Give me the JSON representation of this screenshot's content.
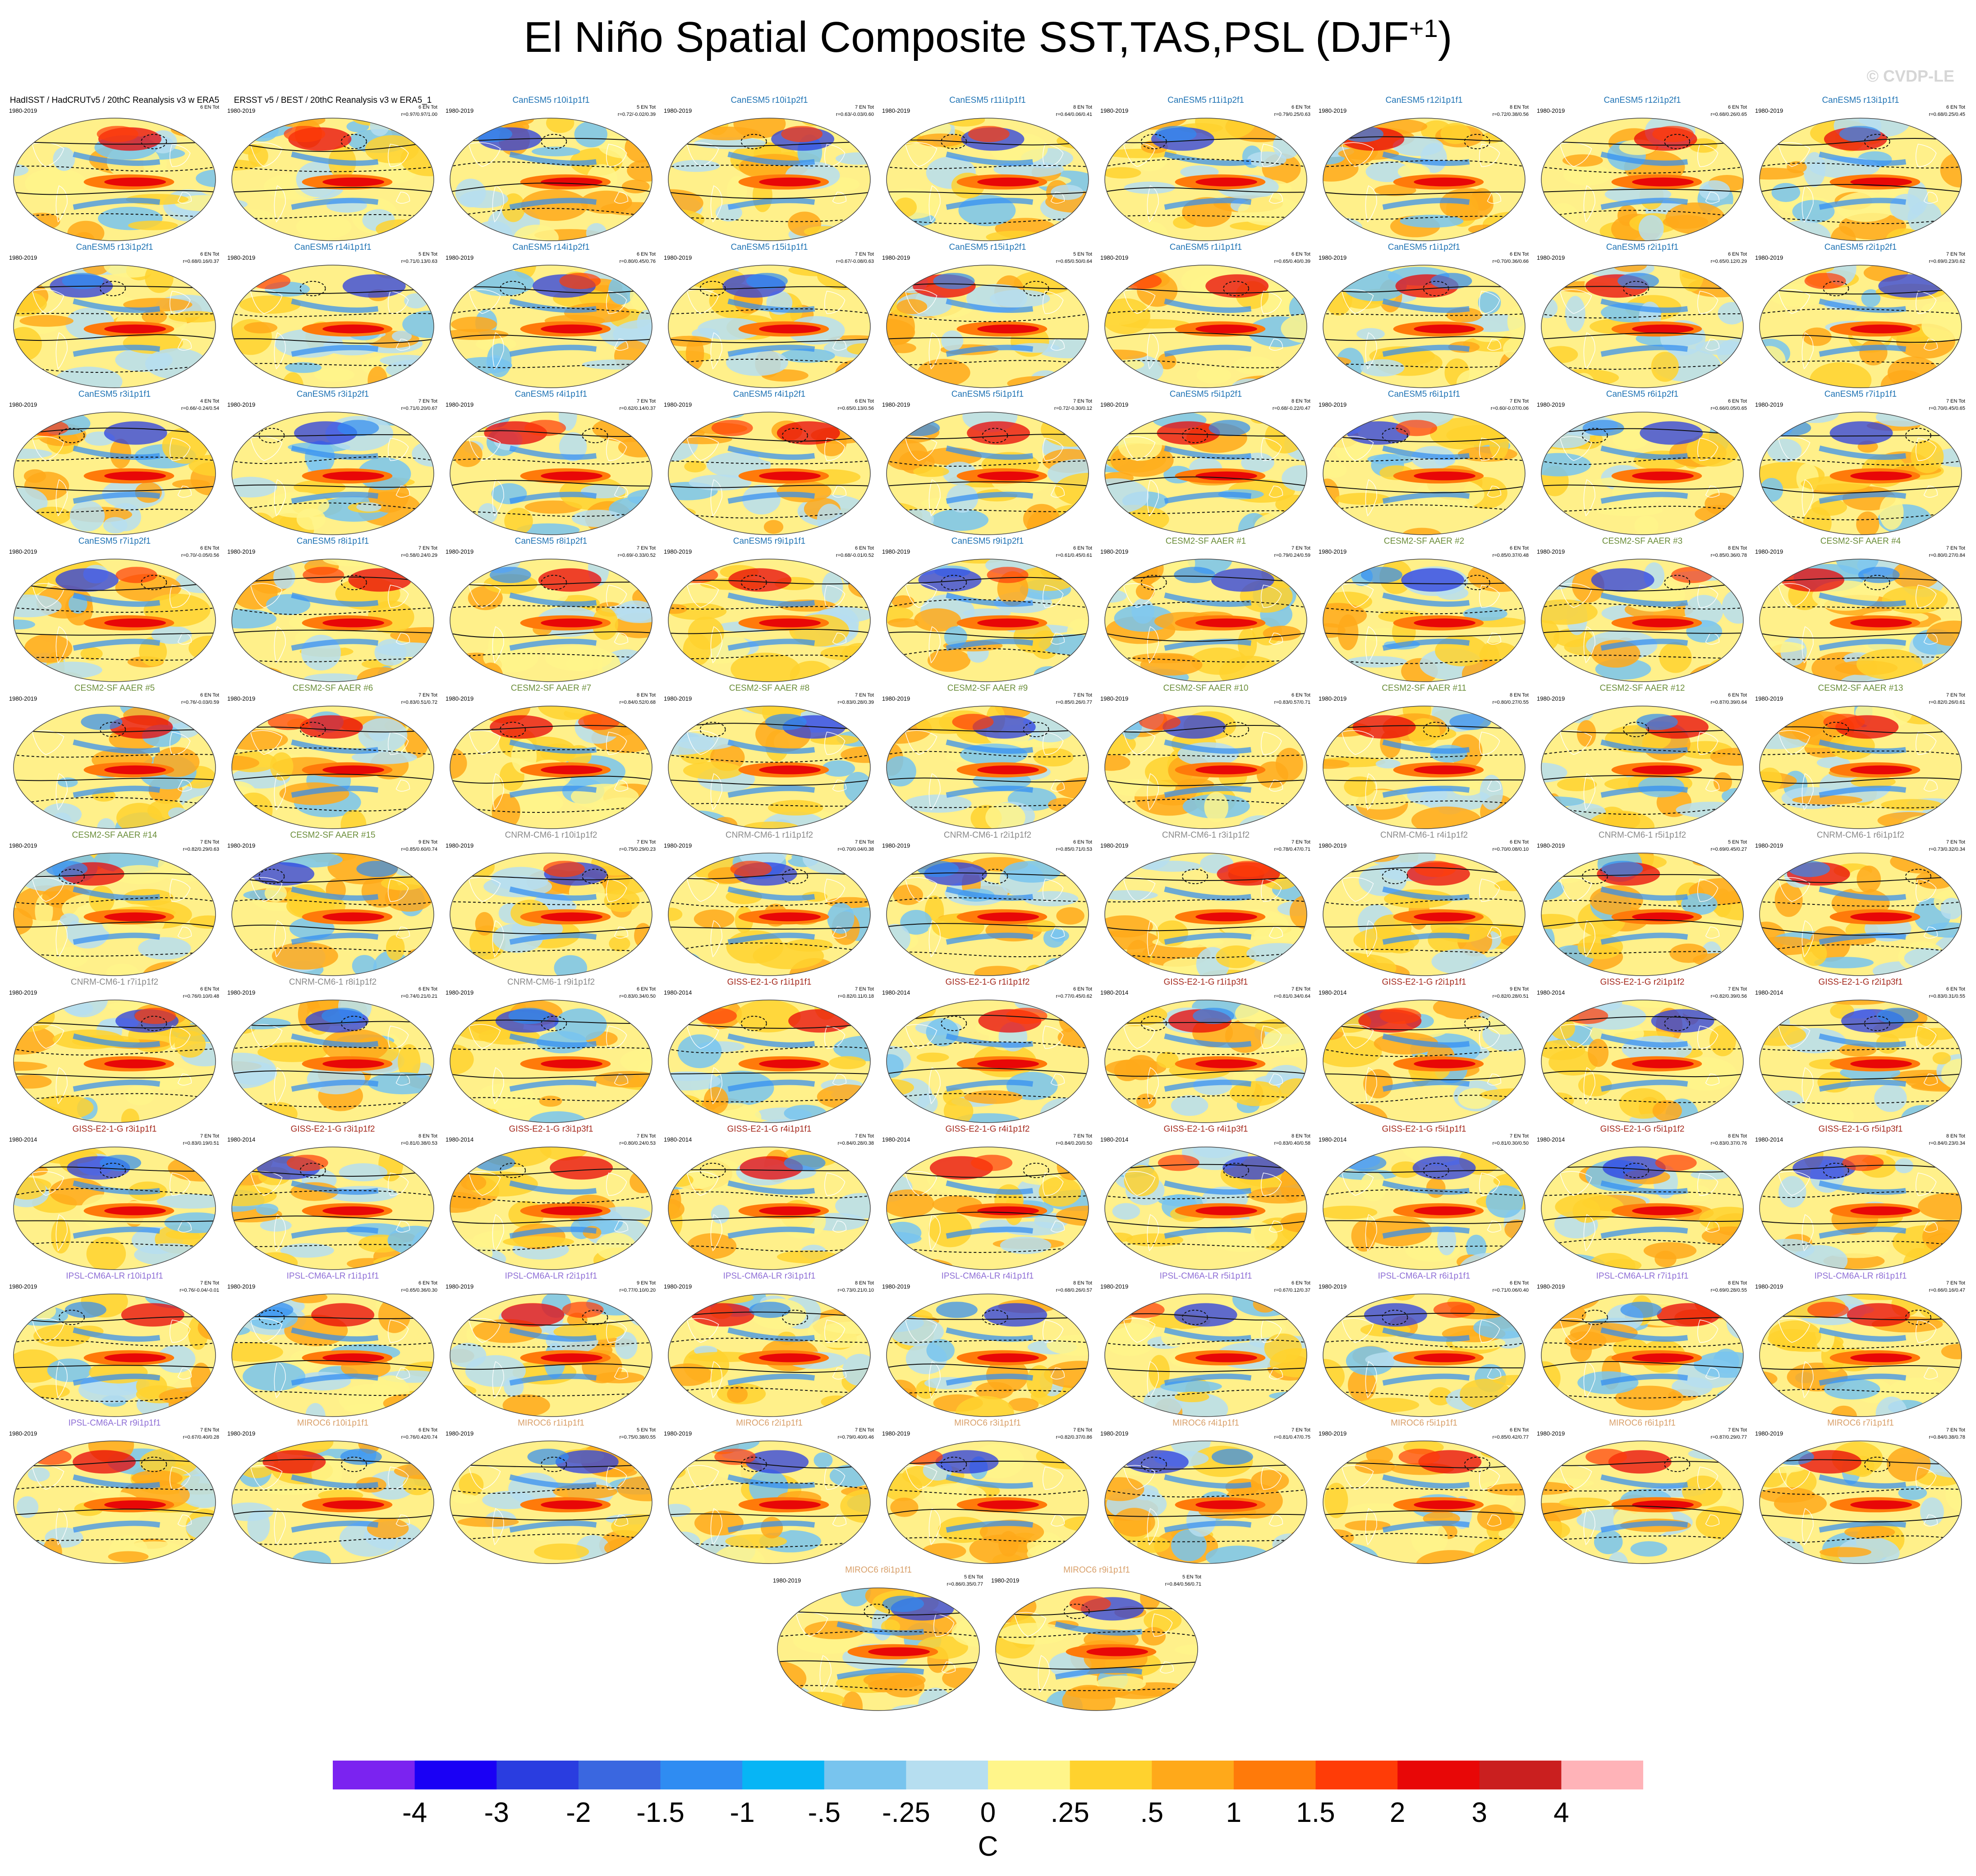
{
  "title_main": "El Niño Spatial Composite SST,TAS,PSL (DJF",
  "title_sup": "+1",
  "title_end": ")",
  "watermark": "© CVDP-LE",
  "chart_data": {
    "type": "heatmap",
    "map_projection": "Robinson (global)",
    "panel_grid": {
      "columns": 9,
      "rows_full": 10,
      "last_row_panels": 2
    },
    "colorbar": {
      "units": "C",
      "labels": [
        "-4",
        "-3",
        "-2",
        "-1.5",
        "-1",
        "-.5",
        "-.25",
        "0",
        ".25",
        ".5",
        "1",
        "1.5",
        "2",
        "3",
        "4"
      ],
      "colors": [
        "#7b23f0",
        "#1a00f5",
        "#2a3de0",
        "#3a67e0",
        "#2f8cf2",
        "#07b5f5",
        "#78c4ee",
        "#b6def0",
        "#fff58a",
        "#ffd22e",
        "#ffa91a",
        "#ff7a0a",
        "#ff3c07",
        "#e80707",
        "#ca1f1f",
        "#ffb3b8"
      ]
    },
    "panels": [
      {
        "title": "HadISST / HadCRUTv5 / 20thC Reanalysis v3 w ERA5",
        "color": "#000000",
        "years": "1980-2019",
        "en": "6 EN Tot",
        "stats": ""
      },
      {
        "title": "ERSST v5 / BEST / 20thC Reanalysis v3 w ERA5_1",
        "color": "#000000",
        "years": "1980-2019",
        "en": "6 EN Tot",
        "stats": "r=0.97/0.97/1.00"
      },
      {
        "title": "CanESM5 r10i1p1f1",
        "color": "#1f73b4",
        "years": "1980-2019",
        "en": "5 EN Tot",
        "stats": "r=0.72/-0.02/0.39"
      },
      {
        "title": "CanESM5 r10i1p2f1",
        "color": "#1f73b4",
        "years": "1980-2019",
        "en": "7 EN Tot",
        "stats": "r=0.63/-0.03/0.60"
      },
      {
        "title": "CanESM5 r11i1p1f1",
        "color": "#1f73b4",
        "years": "1980-2019",
        "en": "8 EN Tot",
        "stats": "r=0.64/0.06/0.41"
      },
      {
        "title": "CanESM5 r11i1p2f1",
        "color": "#1f73b4",
        "years": "1980-2019",
        "en": "6 EN Tot",
        "stats": "r=0.79/0.25/0.63"
      },
      {
        "title": "CanESM5 r12i1p1f1",
        "color": "#1f73b4",
        "years": "1980-2019",
        "en": "8 EN Tot",
        "stats": "r=0.72/0.38/0.56"
      },
      {
        "title": "CanESM5 r12i1p2f1",
        "color": "#1f73b4",
        "years": "1980-2019",
        "en": "6 EN Tot",
        "stats": "r=0.68/0.26/0.65"
      },
      {
        "title": "CanESM5 r13i1p1f1",
        "color": "#1f73b4",
        "years": "1980-2019",
        "en": "6 EN Tot",
        "stats": "r=0.68/0.25/0.45"
      },
      {
        "title": "CanESM5 r13i1p2f1",
        "color": "#1f73b4",
        "years": "1980-2019",
        "en": "6 EN Tot",
        "stats": "r=0.68/0.16/0.37"
      },
      {
        "title": "CanESM5 r14i1p1f1",
        "color": "#1f73b4",
        "years": "1980-2019",
        "en": "5 EN Tot",
        "stats": "r=0.71/0.13/0.63"
      },
      {
        "title": "CanESM5 r14i1p2f1",
        "color": "#1f73b4",
        "years": "1980-2019",
        "en": "6 EN Tot",
        "stats": "r=0.80/0.45/0.76"
      },
      {
        "title": "CanESM5 r15i1p1f1",
        "color": "#1f73b4",
        "years": "1980-2019",
        "en": "7 EN Tot",
        "stats": "r=0.67/-0.08/0.63"
      },
      {
        "title": "CanESM5 r15i1p2f1",
        "color": "#1f73b4",
        "years": "1980-2019",
        "en": "5 EN Tot",
        "stats": "r=0.65/0.50/0.64"
      },
      {
        "title": "CanESM5 r1i1p1f1",
        "color": "#1f73b4",
        "years": "1980-2019",
        "en": "6 EN Tot",
        "stats": "r=0.65/0.40/0.39"
      },
      {
        "title": "CanESM5 r1i1p2f1",
        "color": "#1f73b4",
        "years": "1980-2019",
        "en": "6 EN Tot",
        "stats": "r=0.70/0.36/0.66"
      },
      {
        "title": "CanESM5 r2i1p1f1",
        "color": "#1f73b4",
        "years": "1980-2019",
        "en": "6 EN Tot",
        "stats": "r=0.65/0.12/0.29"
      },
      {
        "title": "CanESM5 r2i1p2f1",
        "color": "#1f73b4",
        "years": "1980-2019",
        "en": "7 EN Tot",
        "stats": "r=0.69/0.23/0.62"
      },
      {
        "title": "CanESM5 r3i1p1f1",
        "color": "#1f73b4",
        "years": "1980-2019",
        "en": "4 EN Tot",
        "stats": "r=0.66/-0.24/0.54"
      },
      {
        "title": "CanESM5 r3i1p2f1",
        "color": "#1f73b4",
        "years": "1980-2019",
        "en": "7 EN Tot",
        "stats": "r=0.71/0.20/0.67"
      },
      {
        "title": "CanESM5 r4i1p1f1",
        "color": "#1f73b4",
        "years": "1980-2019",
        "en": "7 EN Tot",
        "stats": "r=0.62/0.14/0.37"
      },
      {
        "title": "CanESM5 r4i1p2f1",
        "color": "#1f73b4",
        "years": "1980-2019",
        "en": "6 EN Tot",
        "stats": "r=0.65/0.13/0.56"
      },
      {
        "title": "CanESM5 r5i1p1f1",
        "color": "#1f73b4",
        "years": "1980-2019",
        "en": "7 EN Tot",
        "stats": "r=0.72/-0.30/0.12"
      },
      {
        "title": "CanESM5 r5i1p2f1",
        "color": "#1f73b4",
        "years": "1980-2019",
        "en": "8 EN Tot",
        "stats": "r=0.68/-0.22/0.47"
      },
      {
        "title": "CanESM5 r6i1p1f1",
        "color": "#1f73b4",
        "years": "1980-2019",
        "en": "7 EN Tot",
        "stats": "r=0.60/-0.07/0.06"
      },
      {
        "title": "CanESM5 r6i1p2f1",
        "color": "#1f73b4",
        "years": "1980-2019",
        "en": "6 EN Tot",
        "stats": "r=0.66/0.05/0.65"
      },
      {
        "title": "CanESM5 r7i1p1f1",
        "color": "#1f73b4",
        "years": "1980-2019",
        "en": "7 EN Tot",
        "stats": "r=0.70/0.45/0.65"
      },
      {
        "title": "CanESM5 r7i1p2f1",
        "color": "#1f73b4",
        "years": "1980-2019",
        "en": "6 EN Tot",
        "stats": "r=0.70/-0.05/0.56"
      },
      {
        "title": "CanESM5 r8i1p1f1",
        "color": "#1f73b4",
        "years": "1980-2019",
        "en": "7 EN Tot",
        "stats": "r=0.58/0.24/0.29"
      },
      {
        "title": "CanESM5 r8i1p2f1",
        "color": "#1f73b4",
        "years": "1980-2019",
        "en": "7 EN Tot",
        "stats": "r=0.69/-0.33/0.52"
      },
      {
        "title": "CanESM5 r9i1p1f1",
        "color": "#1f73b4",
        "years": "1980-2019",
        "en": "6 EN Tot",
        "stats": "r=0.68/-0.01/0.52"
      },
      {
        "title": "CanESM5 r9i1p2f1",
        "color": "#1f73b4",
        "years": "1980-2019",
        "en": "6 EN Tot",
        "stats": "r=0.61/0.45/0.61"
      },
      {
        "title": "CESM2-SF AAER #1",
        "color": "#6b8e3a",
        "years": "1980-2019",
        "en": "7 EN Tot",
        "stats": "r=0.79/0.24/0.59"
      },
      {
        "title": "CESM2-SF AAER #2",
        "color": "#6b8e3a",
        "years": "1980-2019",
        "en": "6 EN Tot",
        "stats": "r=0.85/0.37/0.48"
      },
      {
        "title": "CESM2-SF AAER #3",
        "color": "#6b8e3a",
        "years": "1980-2019",
        "en": "8 EN Tot",
        "stats": "r=0.85/0.36/0.78"
      },
      {
        "title": "CESM2-SF AAER #4",
        "color": "#6b8e3a",
        "years": "1980-2019",
        "en": "7 EN Tot",
        "stats": "r=0.80/0.27/0.84"
      },
      {
        "title": "CESM2-SF AAER #5",
        "color": "#6b8e3a",
        "years": "1980-2019",
        "en": "6 EN Tot",
        "stats": "r=0.76/-0.03/0.59"
      },
      {
        "title": "CESM2-SF AAER #6",
        "color": "#6b8e3a",
        "years": "1980-2019",
        "en": "7 EN Tot",
        "stats": "r=0.83/0.51/0.72"
      },
      {
        "title": "CESM2-SF AAER #7",
        "color": "#6b8e3a",
        "years": "1980-2019",
        "en": "8 EN Tot",
        "stats": "r=0.84/0.52/0.68"
      },
      {
        "title": "CESM2-SF AAER #8",
        "color": "#6b8e3a",
        "years": "1980-2019",
        "en": "7 EN Tot",
        "stats": "r=0.83/0.28/0.39"
      },
      {
        "title": "CESM2-SF AAER #9",
        "color": "#6b8e3a",
        "years": "1980-2019",
        "en": "7 EN Tot",
        "stats": "r=0.85/0.26/0.77"
      },
      {
        "title": "CESM2-SF AAER #10",
        "color": "#6b8e3a",
        "years": "1980-2019",
        "en": "6 EN Tot",
        "stats": "r=0.83/0.57/0.71"
      },
      {
        "title": "CESM2-SF AAER #11",
        "color": "#6b8e3a",
        "years": "1980-2019",
        "en": "8 EN Tot",
        "stats": "r=0.80/0.27/0.55"
      },
      {
        "title": "CESM2-SF AAER #12",
        "color": "#6b8e3a",
        "years": "1980-2019",
        "en": "6 EN Tot",
        "stats": "r=0.87/0.39/0.64"
      },
      {
        "title": "CESM2-SF AAER #13",
        "color": "#6b8e3a",
        "years": "1980-2019",
        "en": "7 EN Tot",
        "stats": "r=0.82/0.26/0.61"
      },
      {
        "title": "CESM2-SF AAER #14",
        "color": "#6b8e3a",
        "years": "1980-2019",
        "en": "7 EN Tot",
        "stats": "r=0.82/0.29/0.63"
      },
      {
        "title": "CESM2-SF AAER #15",
        "color": "#6b8e3a",
        "years": "1980-2019",
        "en": "9 EN Tot",
        "stats": "r=0.85/0.60/0.74"
      },
      {
        "title": "CNRM-CM6-1 r10i1p1f2",
        "color": "#8a8a8a",
        "years": "1980-2019",
        "en": "7 EN Tot",
        "stats": "r=0.75/0.29/0.23"
      },
      {
        "title": "CNRM-CM6-1 r1i1p1f2",
        "color": "#8a8a8a",
        "years": "1980-2019",
        "en": "7 EN Tot",
        "stats": "r=0.70/0.04/0.38"
      },
      {
        "title": "CNRM-CM6-1 r2i1p1f2",
        "color": "#8a8a8a",
        "years": "1980-2019",
        "en": "6 EN Tot",
        "stats": "r=0.85/0.71/0.53"
      },
      {
        "title": "CNRM-CM6-1 r3i1p1f2",
        "color": "#8a8a8a",
        "years": "1980-2019",
        "en": "7 EN Tot",
        "stats": "r=0.78/0.47/0.71"
      },
      {
        "title": "CNRM-CM6-1 r4i1p1f2",
        "color": "#8a8a8a",
        "years": "1980-2019",
        "en": "6 EN Tot",
        "stats": "r=0.70/0.08/0.10"
      },
      {
        "title": "CNRM-CM6-1 r5i1p1f2",
        "color": "#8a8a8a",
        "years": "1980-2019",
        "en": "5 EN Tot",
        "stats": "r=0.69/0.45/0.27"
      },
      {
        "title": "CNRM-CM6-1 r6i1p1f2",
        "color": "#8a8a8a",
        "years": "1980-2019",
        "en": "7 EN Tot",
        "stats": "r=0.73/0.32/0.34"
      },
      {
        "title": "CNRM-CM6-1 r7i1p1f2",
        "color": "#8a8a8a",
        "years": "1980-2019",
        "en": "6 EN Tot",
        "stats": "r=0.76/0.10/0.48"
      },
      {
        "title": "CNRM-CM6-1 r8i1p1f2",
        "color": "#8a8a8a",
        "years": "1980-2019",
        "en": "6 EN Tot",
        "stats": "r=0.74/0.21/0.21"
      },
      {
        "title": "CNRM-CM6-1 r9i1p1f2",
        "color": "#8a8a8a",
        "years": "1980-2019",
        "en": "6 EN Tot",
        "stats": "r=0.83/0.34/0.50"
      },
      {
        "title": "GISS-E2-1-G r1i1p1f1",
        "color": "#a52a1e",
        "years": "1980-2014",
        "en": "7 EN Tot",
        "stats": "r=0.82/0.11/0.18"
      },
      {
        "title": "GISS-E2-1-G r1i1p1f2",
        "color": "#a52a1e",
        "years": "1980-2014",
        "en": "6 EN Tot",
        "stats": "r=0.77/0.45/0.62"
      },
      {
        "title": "GISS-E2-1-G r1i1p3f1",
        "color": "#a52a1e",
        "years": "1980-2014",
        "en": "7 EN Tot",
        "stats": "r=0.81/0.34/0.64"
      },
      {
        "title": "GISS-E2-1-G r2i1p1f1",
        "color": "#a52a1e",
        "years": "1980-2014",
        "en": "9 EN Tot",
        "stats": "r=0.82/0.28/0.51"
      },
      {
        "title": "GISS-E2-1-G r2i1p1f2",
        "color": "#a52a1e",
        "years": "1980-2014",
        "en": "7 EN Tot",
        "stats": "r=0.82/0.39/0.56"
      },
      {
        "title": "GISS-E2-1-G r2i1p3f1",
        "color": "#a52a1e",
        "years": "1980-2014",
        "en": "6 EN Tot",
        "stats": "r=0.83/0.31/0.55"
      },
      {
        "title": "GISS-E2-1-G r3i1p1f1",
        "color": "#a52a1e",
        "years": "1980-2014",
        "en": "7 EN Tot",
        "stats": "r=0.83/0.19/0.51"
      },
      {
        "title": "GISS-E2-1-G r3i1p1f2",
        "color": "#a52a1e",
        "years": "1980-2014",
        "en": "8 EN Tot",
        "stats": "r=0.81/0.38/0.53"
      },
      {
        "title": "GISS-E2-1-G r3i1p3f1",
        "color": "#a52a1e",
        "years": "1980-2014",
        "en": "7 EN Tot",
        "stats": "r=0.80/0.24/0.53"
      },
      {
        "title": "GISS-E2-1-G r4i1p1f1",
        "color": "#a52a1e",
        "years": "1980-2014",
        "en": "7 EN Tot",
        "stats": "r=0.84/0.28/0.38"
      },
      {
        "title": "GISS-E2-1-G r4i1p1f2",
        "color": "#a52a1e",
        "years": "1980-2014",
        "en": "7 EN Tot",
        "stats": "r=0.84/0.20/0.50"
      },
      {
        "title": "GISS-E2-1-G r4i1p3f1",
        "color": "#a52a1e",
        "years": "1980-2014",
        "en": "8 EN Tot",
        "stats": "r=0.83/0.40/0.58"
      },
      {
        "title": "GISS-E2-1-G r5i1p1f1",
        "color": "#a52a1e",
        "years": "1980-2014",
        "en": "7 EN Tot",
        "stats": "r=0.81/0.30/0.50"
      },
      {
        "title": "GISS-E2-1-G r5i1p1f2",
        "color": "#a52a1e",
        "years": "1980-2014",
        "en": "8 EN Tot",
        "stats": "r=0.83/0.37/0.76"
      },
      {
        "title": "GISS-E2-1-G r5i1p3f1",
        "color": "#a52a1e",
        "years": "1980-2014",
        "en": "8 EN Tot",
        "stats": "r=0.84/0.23/0.34"
      },
      {
        "title": "IPSL-CM6A-LR r10i1p1f1",
        "color": "#8f6fd6",
        "years": "1980-2019",
        "en": "7 EN Tot",
        "stats": "r=0.76/-0.04/-0.01"
      },
      {
        "title": "IPSL-CM6A-LR r1i1p1f1",
        "color": "#8f6fd6",
        "years": "1980-2019",
        "en": "6 EN Tot",
        "stats": "r=0.65/0.36/0.30"
      },
      {
        "title": "IPSL-CM6A-LR r2i1p1f1",
        "color": "#8f6fd6",
        "years": "1980-2019",
        "en": "9 EN Tot",
        "stats": "r=0.77/0.10/0.20"
      },
      {
        "title": "IPSL-CM6A-LR r3i1p1f1",
        "color": "#8f6fd6",
        "years": "1980-2019",
        "en": "8 EN Tot",
        "stats": "r=0.73/0.21/0.10"
      },
      {
        "title": "IPSL-CM6A-LR r4i1p1f1",
        "color": "#8f6fd6",
        "years": "1980-2019",
        "en": "8 EN Tot",
        "stats": "r=0.68/0.26/0.57"
      },
      {
        "title": "IPSL-CM6A-LR r5i1p1f1",
        "color": "#8f6fd6",
        "years": "1980-2019",
        "en": "6 EN Tot",
        "stats": "r=0.67/0.12/0.37"
      },
      {
        "title": "IPSL-CM6A-LR r6i1p1f1",
        "color": "#8f6fd6",
        "years": "1980-2019",
        "en": "6 EN Tot",
        "stats": "r=0.71/0.06/0.40"
      },
      {
        "title": "IPSL-CM6A-LR r7i1p1f1",
        "color": "#8f6fd6",
        "years": "1980-2019",
        "en": "8 EN Tot",
        "stats": "r=0.69/0.28/0.55"
      },
      {
        "title": "IPSL-CM6A-LR r8i1p1f1",
        "color": "#8f6fd6",
        "years": "1980-2019",
        "en": "7 EN Tot",
        "stats": "r=0.66/0.16/0.47"
      },
      {
        "title": "IPSL-CM6A-LR r9i1p1f1",
        "color": "#8f6fd6",
        "years": "1980-2019",
        "en": "7 EN Tot",
        "stats": "r=0.67/0.40/0.28"
      },
      {
        "title": "MIROC6 r10i1p1f1",
        "color": "#d9a06a",
        "years": "1980-2019",
        "en": "6 EN Tot",
        "stats": "r=0.76/0.42/0.74"
      },
      {
        "title": "MIROC6 r1i1p1f1",
        "color": "#d9a06a",
        "years": "1980-2019",
        "en": "5 EN Tot",
        "stats": "r=0.75/0.38/0.55"
      },
      {
        "title": "MIROC6 r2i1p1f1",
        "color": "#d9a06a",
        "years": "1980-2019",
        "en": "7 EN Tot",
        "stats": "r=0.79/0.40/0.46"
      },
      {
        "title": "MIROC6 r3i1p1f1",
        "color": "#d9a06a",
        "years": "1980-2019",
        "en": "7 EN Tot",
        "stats": "r=0.82/0.37/0.86"
      },
      {
        "title": "MIROC6 r4i1p1f1",
        "color": "#d9a06a",
        "years": "1980-2019",
        "en": "7 EN Tot",
        "stats": "r=0.81/0.47/0.75"
      },
      {
        "title": "MIROC6 r5i1p1f1",
        "color": "#d9a06a",
        "years": "1980-2019",
        "en": "6 EN Tot",
        "stats": "r=0.85/0.42/0.77"
      },
      {
        "title": "MIROC6 r6i1p1f1",
        "color": "#d9a06a",
        "years": "1980-2019",
        "en": "7 EN Tot",
        "stats": "r=0.87/0.29/0.77"
      },
      {
        "title": "MIROC6 r7i1p1f1",
        "color": "#d9a06a",
        "years": "1980-2019",
        "en": "7 EN Tot",
        "stats": "r=0.84/0.38/0.78"
      },
      {
        "title": "MIROC6 r8i1p1f1",
        "color": "#d9a06a",
        "years": "1980-2019",
        "en": "5 EN Tot",
        "stats": "r=0.86/0.35/0.77"
      },
      {
        "title": "MIROC6 r9i1p1f1",
        "color": "#d9a06a",
        "years": "1980-2019",
        "en": "5 EN Tot",
        "stats": "r=0.84/0.56/0.71"
      }
    ]
  }
}
